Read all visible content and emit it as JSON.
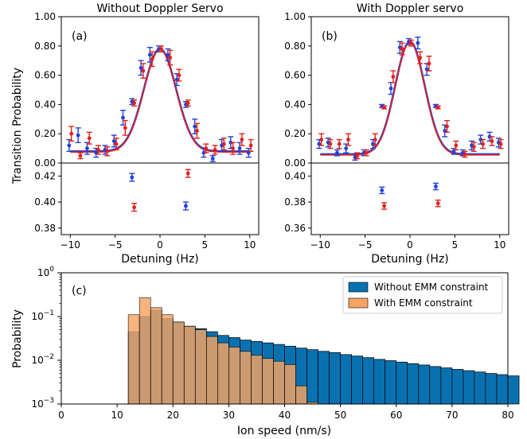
{
  "colors": {
    "red": "#e3201c",
    "blue": "#1d43d9",
    "hist_blue": "#0a71b0",
    "hist_orange": "#f7a463"
  },
  "shared": {
    "ylabel": "Transition Probability",
    "xlabel": "Detuning (Hz)",
    "xticks": [
      -10,
      -5,
      0,
      5,
      10
    ]
  },
  "chart_data": [
    {
      "type": "scatter",
      "panel": "a",
      "title": "Without Doppler Servo",
      "label": "(a)",
      "xlim": [
        -11,
        11
      ],
      "ylim": [
        0,
        1.0
      ],
      "yticks": [
        "0.00",
        "0.20",
        "0.40",
        "0.60",
        "0.80",
        "1.00"
      ],
      "series": [
        {
          "color": "blue",
          "points": [
            {
              "x": -10,
              "y": 0.12,
              "err": 0.04
            },
            {
              "x": -9,
              "y": 0.19,
              "err": 0.05
            },
            {
              "x": -8,
              "y": 0.1,
              "err": 0.04
            },
            {
              "x": -7,
              "y": 0.07,
              "err": 0.03
            },
            {
              "x": -6,
              "y": 0.09,
              "err": 0.03
            },
            {
              "x": -5,
              "y": 0.15,
              "err": 0.04
            },
            {
              "x": -4,
              "y": 0.31,
              "err": 0.05
            },
            {
              "x": -3,
              "y": 0.42,
              "err": 0.02
            },
            {
              "x": -2,
              "y": 0.65,
              "err": 0.05
            },
            {
              "x": -1,
              "y": 0.74,
              "err": 0.05
            },
            {
              "x": 0,
              "y": 0.78,
              "err": 0.02
            },
            {
              "x": 1,
              "y": 0.74,
              "err": 0.04
            },
            {
              "x": 2,
              "y": 0.57,
              "err": 0.04
            },
            {
              "x": 3,
              "y": 0.4,
              "err": 0.02
            },
            {
              "x": 4,
              "y": 0.25,
              "err": 0.05
            },
            {
              "x": 5,
              "y": 0.07,
              "err": 0.03
            },
            {
              "x": 6,
              "y": 0.03,
              "err": 0.02
            },
            {
              "x": 7,
              "y": 0.12,
              "err": 0.04
            },
            {
              "x": 8,
              "y": 0.14,
              "err": 0.04
            },
            {
              "x": 9,
              "y": 0.1,
              "err": 0.04
            },
            {
              "x": 10,
              "y": 0.07,
              "err": 0.03
            }
          ]
        },
        {
          "color": "red",
          "points": [
            {
              "x": -10,
              "y": 0.2,
              "err": 0.05
            },
            {
              "x": -9,
              "y": 0.05,
              "err": 0.02
            },
            {
              "x": -8,
              "y": 0.17,
              "err": 0.04
            },
            {
              "x": -7,
              "y": 0.09,
              "err": 0.03
            },
            {
              "x": -6,
              "y": 0.08,
              "err": 0.03
            },
            {
              "x": -5,
              "y": 0.13,
              "err": 0.04
            },
            {
              "x": -4,
              "y": 0.24,
              "err": 0.05
            },
            {
              "x": -3,
              "y": 0.41,
              "err": 0.02
            },
            {
              "x": -2,
              "y": 0.63,
              "err": 0.05
            },
            {
              "x": -1,
              "y": 0.71,
              "err": 0.05
            },
            {
              "x": 0,
              "y": 0.78,
              "err": 0.02
            },
            {
              "x": 1,
              "y": 0.72,
              "err": 0.05
            },
            {
              "x": 2,
              "y": 0.6,
              "err": 0.04
            },
            {
              "x": 3,
              "y": 0.41,
              "err": 0.02
            },
            {
              "x": 4,
              "y": 0.22,
              "err": 0.05
            },
            {
              "x": 5,
              "y": 0.1,
              "err": 0.03
            },
            {
              "x": 6,
              "y": 0.09,
              "err": 0.03
            },
            {
              "x": 7,
              "y": 0.13,
              "err": 0.04
            },
            {
              "x": 8,
              "y": 0.1,
              "err": 0.04
            },
            {
              "x": 9,
              "y": 0.16,
              "err": 0.04
            },
            {
              "x": 10,
              "y": 0.12,
              "err": 0.04
            }
          ]
        }
      ],
      "fit": {
        "amplitude": 0.7,
        "center": 0,
        "sigma": 1.8,
        "baseline": 0.08,
        "lines": [
          {
            "color": "blue",
            "width": 2.6
          },
          {
            "color": "red",
            "width": 1.6
          }
        ]
      }
    },
    {
      "type": "scatter",
      "panel": "a-lower",
      "ylim": [
        0.375,
        0.43
      ],
      "yticks": [
        "0.38",
        "0.40",
        "0.42"
      ],
      "series": [
        {
          "color": "blue",
          "points": [
            {
              "x": -3,
              "y": 0.419,
              "err": 0.003
            },
            {
              "x": 3,
              "y": 0.397,
              "err": 0.003
            }
          ]
        },
        {
          "color": "red",
          "points": [
            {
              "x": -3,
              "y": 0.396,
              "err": 0.003
            },
            {
              "x": 3,
              "y": 0.422,
              "err": 0.003
            }
          ]
        }
      ]
    },
    {
      "type": "scatter",
      "panel": "b",
      "title": "With Doppler servo",
      "label": "(b)",
      "xlim": [
        -11,
        11
      ],
      "ylim": [
        0,
        1.0
      ],
      "yticks": [
        "0.00",
        "0.20",
        "0.40",
        "0.60",
        "0.80",
        "1.00"
      ],
      "series": [
        {
          "color": "blue",
          "points": [
            {
              "x": -10,
              "y": 0.13,
              "err": 0.03
            },
            {
              "x": -9,
              "y": 0.14,
              "err": 0.03
            },
            {
              "x": -8,
              "y": 0.07,
              "err": 0.02
            },
            {
              "x": -7,
              "y": 0.1,
              "err": 0.03
            },
            {
              "x": -6,
              "y": 0.04,
              "err": 0.02
            },
            {
              "x": -5,
              "y": 0.07,
              "err": 0.02
            },
            {
              "x": -4,
              "y": 0.13,
              "err": 0.03
            },
            {
              "x": -3,
              "y": 0.39,
              "err": 0.01
            },
            {
              "x": -2,
              "y": 0.51,
              "err": 0.04
            },
            {
              "x": -1,
              "y": 0.79,
              "err": 0.04
            },
            {
              "x": 0,
              "y": 0.83,
              "err": 0.02
            },
            {
              "x": 1,
              "y": 0.82,
              "err": 0.04
            },
            {
              "x": 2,
              "y": 0.64,
              "err": 0.04
            },
            {
              "x": 3,
              "y": 0.39,
              "err": 0.01
            },
            {
              "x": 4,
              "y": 0.22,
              "err": 0.04
            },
            {
              "x": 5,
              "y": 0.08,
              "err": 0.02
            },
            {
              "x": 6,
              "y": 0.07,
              "err": 0.02
            },
            {
              "x": 7,
              "y": 0.12,
              "err": 0.03
            },
            {
              "x": 8,
              "y": 0.16,
              "err": 0.03
            },
            {
              "x": 9,
              "y": 0.18,
              "err": 0.03
            },
            {
              "x": 10,
              "y": 0.14,
              "err": 0.03
            }
          ]
        },
        {
          "color": "red",
          "points": [
            {
              "x": -10,
              "y": 0.16,
              "err": 0.04
            },
            {
              "x": -9,
              "y": 0.13,
              "err": 0.03
            },
            {
              "x": -8,
              "y": 0.13,
              "err": 0.03
            },
            {
              "x": -7,
              "y": 0.16,
              "err": 0.04
            },
            {
              "x": -6,
              "y": 0.05,
              "err": 0.02
            },
            {
              "x": -5,
              "y": 0.07,
              "err": 0.02
            },
            {
              "x": -4,
              "y": 0.16,
              "err": 0.04
            },
            {
              "x": -3,
              "y": 0.38,
              "err": 0.01
            },
            {
              "x": -2,
              "y": 0.59,
              "err": 0.04
            },
            {
              "x": -1,
              "y": 0.78,
              "err": 0.04
            },
            {
              "x": 0,
              "y": 0.82,
              "err": 0.02
            },
            {
              "x": 1,
              "y": 0.72,
              "err": 0.04
            },
            {
              "x": 2,
              "y": 0.68,
              "err": 0.05
            },
            {
              "x": 3,
              "y": 0.38,
              "err": 0.01
            },
            {
              "x": 4,
              "y": 0.25,
              "err": 0.04
            },
            {
              "x": 5,
              "y": 0.12,
              "err": 0.03
            },
            {
              "x": 6,
              "y": 0.06,
              "err": 0.02
            },
            {
              "x": 7,
              "y": 0.11,
              "err": 0.03
            },
            {
              "x": 8,
              "y": 0.13,
              "err": 0.03
            },
            {
              "x": 9,
              "y": 0.15,
              "err": 0.03
            },
            {
              "x": 10,
              "y": 0.13,
              "err": 0.03
            }
          ]
        }
      ],
      "fit": {
        "amplitude": 0.77,
        "center": 0,
        "sigma": 1.65,
        "baseline": 0.06,
        "lines": [
          {
            "color": "blue",
            "width": 2.6
          },
          {
            "color": "red",
            "width": 1.6
          }
        ]
      }
    },
    {
      "type": "scatter",
      "panel": "b-lower",
      "ylim": [
        0.355,
        0.41
      ],
      "yticks": [
        "0.36",
        "0.38",
        "0.40"
      ],
      "series": [
        {
          "color": "blue",
          "points": [
            {
              "x": -3,
              "y": 0.389,
              "err": 0.0025
            },
            {
              "x": 3,
              "y": 0.392,
              "err": 0.0025
            }
          ]
        },
        {
          "color": "red",
          "points": [
            {
              "x": -3,
              "y": 0.377,
              "err": 0.0025
            },
            {
              "x": 3,
              "y": 0.379,
              "err": 0.0025
            }
          ]
        }
      ]
    },
    {
      "type": "bar",
      "panel": "c",
      "label": "(c)",
      "xlabel": "Ion speed (nm/s)",
      "ylabel": "Probability",
      "yscale": "log",
      "xlim": [
        0,
        80
      ],
      "ylim": [
        0.001,
        1
      ],
      "xticks": [
        "0",
        "10",
        "20",
        "30",
        "40",
        "50",
        "60",
        "70",
        "80"
      ],
      "yticks": [
        {
          "exp": "-3",
          "value": 0.001
        },
        {
          "exp": "-2",
          "value": 0.01
        },
        {
          "exp": "-1",
          "value": 0.1
        },
        {
          "exp": "0",
          "value": 1
        }
      ],
      "bin_width": 2,
      "bins_start": 12,
      "series": [
        {
          "name": "Without EMM constraint",
          "color": "hist_blue",
          "values": [
            0.045,
            0.1,
            0.14,
            0.09,
            0.075,
            0.06,
            0.053,
            0.045,
            0.037,
            0.033,
            0.029,
            0.027,
            0.025,
            0.023,
            0.021,
            0.019,
            0.0175,
            0.016,
            0.015,
            0.0135,
            0.0125,
            0.0115,
            0.0105,
            0.0098,
            0.0091,
            0.0084,
            0.0078,
            0.0072,
            0.0067,
            0.0062,
            0.0058,
            0.0054,
            0.005,
            0.0047,
            0.0044
          ]
        },
        {
          "name": "With EMM constraint",
          "color": "hist_orange",
          "values": [
            0.11,
            0.27,
            0.16,
            0.11,
            0.075,
            0.06,
            0.05,
            0.035,
            0.025,
            0.02,
            0.016,
            0.013,
            0.011,
            0.0095,
            0.008,
            0.0026,
            0.0011
          ]
        }
      ],
      "legend": "top-right"
    }
  ]
}
